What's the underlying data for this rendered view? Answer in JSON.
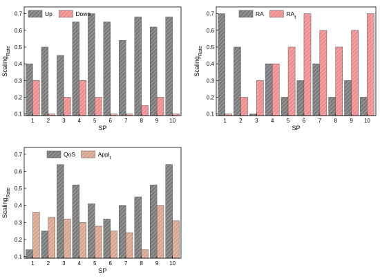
{
  "colors": {
    "grey_fill": "#7a7a7a",
    "grey_hatch": "#b0b0b0",
    "red_fill": "#f08c8c",
    "red_hatch": "#f6c0c0",
    "tan_fill": "#d8a48c",
    "tan_hatch": "#ecd2c4"
  },
  "chart_data": [
    {
      "type": "bar",
      "categories": [
        "1",
        "2",
        "3",
        "4",
        "5",
        "6",
        "7",
        "8",
        "9",
        "10"
      ],
      "xlabel": "SP",
      "ylabel": "Scaling",
      "ylabel_sub": "Rate",
      "ylim": [
        0.09,
        0.74
      ],
      "yticks": [
        "0.1",
        "0.2",
        "0.3",
        "0.4",
        "0.5",
        "0.6",
        "0.7"
      ],
      "legend_position": "top-left",
      "series": [
        {
          "name": "Up",
          "values": [
            0.4,
            0.5,
            0.45,
            0.65,
            0.7,
            0.65,
            0.54,
            0.68,
            0.62,
            0.68
          ],
          "fill": "grey_fill",
          "hatch": "grey_hatch"
        },
        {
          "name": "Down",
          "values": [
            0.3,
            0.1,
            0.2,
            0.3,
            0.2,
            0.1,
            0.1,
            0.15,
            0.2,
            0.1
          ],
          "fill": "red_fill",
          "hatch": "red_hatch"
        }
      ]
    },
    {
      "type": "bar",
      "categories": [
        "1",
        "2",
        "3",
        "4",
        "5",
        "6",
        "7",
        "8",
        "9",
        "10"
      ],
      "xlabel": "SP",
      "ylabel": "Scaling",
      "ylabel_sub": "Rate",
      "ylim": [
        0.09,
        0.74
      ],
      "yticks": [
        "0.1",
        "0.2",
        "0.3",
        "0.4",
        "0.5",
        "0.6",
        "0.7"
      ],
      "legend_position": "top-center",
      "series": [
        {
          "name": "RA",
          "values": [
            0.7,
            0.5,
            0.1,
            0.4,
            0.2,
            0.3,
            0.4,
            0.2,
            0.3,
            0.2
          ],
          "fill": "grey_fill",
          "hatch": "grey_hatch"
        },
        {
          "name": "RA",
          "name_sub": "t",
          "values": [
            0.1,
            0.2,
            0.3,
            0.4,
            0.5,
            0.7,
            0.6,
            0.5,
            0.6,
            0.7
          ],
          "fill": "red_fill",
          "hatch": "red_hatch"
        }
      ]
    },
    {
      "type": "bar",
      "categories": [
        "1",
        "2",
        "3",
        "4",
        "5",
        "6",
        "7",
        "8",
        "9",
        "10"
      ],
      "xlabel": "SP",
      "ylabel": "Scaling",
      "ylabel_sub": "Rate",
      "ylim": [
        0.09,
        0.74
      ],
      "yticks": [
        "0.1",
        "0.2",
        "0.3",
        "0.4",
        "0.5",
        "0.6",
        "0.7"
      ],
      "legend_position": "top-center",
      "series": [
        {
          "name": "QoS",
          "values": [
            0.14,
            0.25,
            0.64,
            0.52,
            0.41,
            0.32,
            0.4,
            0.45,
            0.52,
            0.64
          ],
          "fill": "grey_fill",
          "hatch": "grey_hatch"
        },
        {
          "name": "Appl",
          "name_sub": "t",
          "values": [
            0.36,
            0.33,
            0.32,
            0.3,
            0.28,
            0.25,
            0.24,
            0.14,
            0.4,
            0.31
          ],
          "fill": "tan_fill",
          "hatch": "tan_hatch"
        }
      ]
    }
  ]
}
